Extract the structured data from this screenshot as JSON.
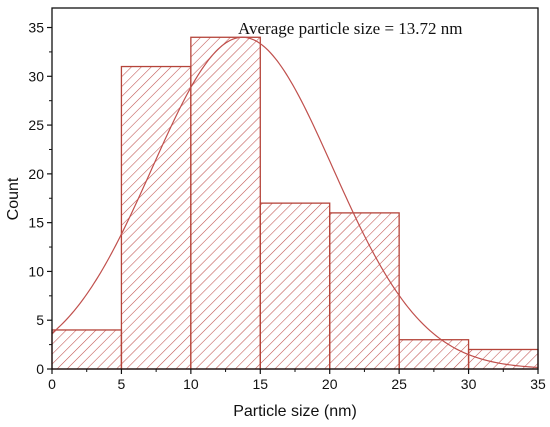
{
  "chart_data": {
    "type": "bar",
    "bin_edges": [
      0,
      5,
      10,
      15,
      20,
      25,
      30,
      35
    ],
    "values": [
      4,
      31,
      34,
      17,
      16,
      3,
      2
    ],
    "xlabel": "Particle size (nm)",
    "ylabel": "Count",
    "xlim": [
      0,
      35
    ],
    "ylim": [
      0,
      37
    ],
    "xticks": [
      0,
      5,
      10,
      15,
      20,
      25,
      30,
      35
    ],
    "yticks": [
      0,
      5,
      10,
      15,
      20,
      25,
      30,
      35
    ],
    "annotation": "Average particle size = 13.72 nm",
    "grid": false,
    "fit_curve": {
      "type": "gaussian",
      "mean": 13.72,
      "sigma": 6.5,
      "peak": 34
    },
    "colors": {
      "bar_edge": "#b5443a",
      "hatch": "#c0504d",
      "fit_line": "#c0504d",
      "axis": "#111111"
    }
  }
}
